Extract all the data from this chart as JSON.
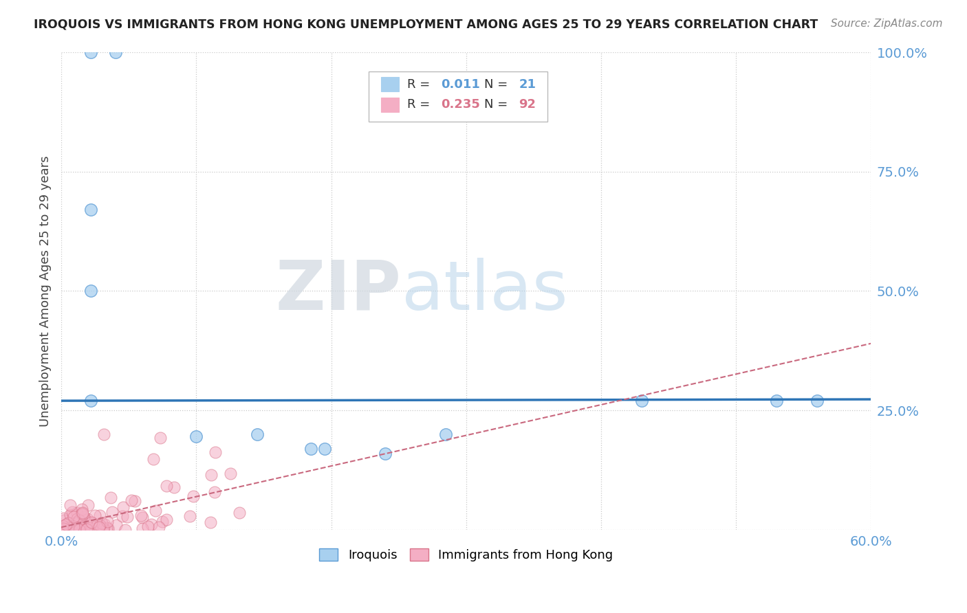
{
  "title": "IROQUOIS VS IMMIGRANTS FROM HONG KONG UNEMPLOYMENT AMONG AGES 25 TO 29 YEARS CORRELATION CHART",
  "source": "Source: ZipAtlas.com",
  "ylabel": "Unemployment Among Ages 25 to 29 years",
  "xlim": [
    0.0,
    0.6
  ],
  "ylim": [
    0.0,
    1.0
  ],
  "xtick_labels": [
    "0.0%",
    "",
    "",
    "",
    "",
    "",
    "60.0%"
  ],
  "ytick_labels": [
    "",
    "25.0%",
    "50.0%",
    "75.0%",
    "100.0%"
  ],
  "watermark_zip": "ZIP",
  "watermark_atlas": "atlas",
  "blue_color": "#a8d0ef",
  "blue_edge": "#5b9bd5",
  "pink_color": "#f4aec4",
  "pink_edge": "#d9748a",
  "trend_blue_color": "#2e75b6",
  "trend_pink_color": "#c9687e",
  "grid_color": "#c8c8c8",
  "iroq_x": [
    0.022,
    0.04,
    0.022,
    0.022,
    0.022,
    0.1,
    0.145,
    0.185,
    0.195,
    0.24,
    0.285,
    0.43,
    0.53,
    0.56
  ],
  "iroq_y": [
    1.0,
    1.0,
    0.67,
    0.5,
    0.27,
    0.195,
    0.2,
    0.17,
    0.17,
    0.16,
    0.2,
    0.27,
    0.27,
    0.27
  ],
  "iroq_trend_x": [
    0.0,
    0.6
  ],
  "iroq_trend_y": [
    0.27,
    0.273
  ],
  "hk_trend_x": [
    0.0,
    0.6
  ],
  "hk_trend_y": [
    0.005,
    0.39
  ],
  "background_color": "#ffffff"
}
